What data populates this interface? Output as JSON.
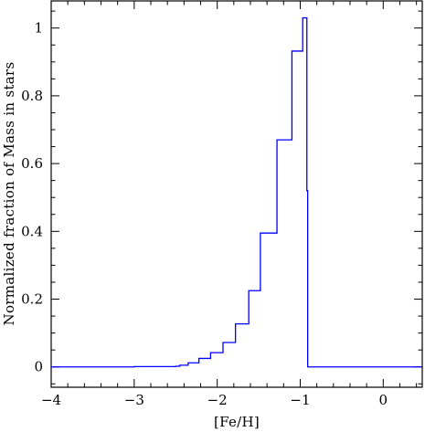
{
  "chart_data": {
    "type": "line",
    "title": "",
    "xlabel": "[Fe/H]",
    "ylabel": "Normalized fraction of Mass in stars",
    "xlim": [
      -4.0,
      0.47
    ],
    "ylim": [
      -0.06,
      1.08
    ],
    "grid": false,
    "legend": "none",
    "line_color": "#0000ff",
    "x_ticks": [
      -4,
      -3,
      -2,
      -1,
      0
    ],
    "x_tick_labels": [
      "−4",
      "−3",
      "−2",
      "−1",
      "0"
    ],
    "y_ticks": [
      0,
      0.2,
      0.4,
      0.6,
      0.8,
      1
    ],
    "y_tick_labels": [
      "0",
      "0.2",
      "0.4",
      "0.6",
      "0.8",
      "1"
    ],
    "series": [
      {
        "style": "step",
        "x": [
          -4.0,
          -3.0,
          -2.5,
          -2.45,
          -2.35,
          -2.22,
          -2.08,
          -1.93,
          -1.78,
          -1.62,
          -1.48,
          -1.28,
          -1.1,
          -0.97,
          -0.92,
          -0.91,
          0.47
        ],
        "y": [
          0.0,
          0.001,
          0.002,
          0.005,
          0.012,
          0.025,
          0.042,
          0.072,
          0.127,
          0.225,
          0.395,
          0.67,
          0.932,
          1.03,
          0.52,
          0.0,
          0.0
        ]
      }
    ]
  }
}
